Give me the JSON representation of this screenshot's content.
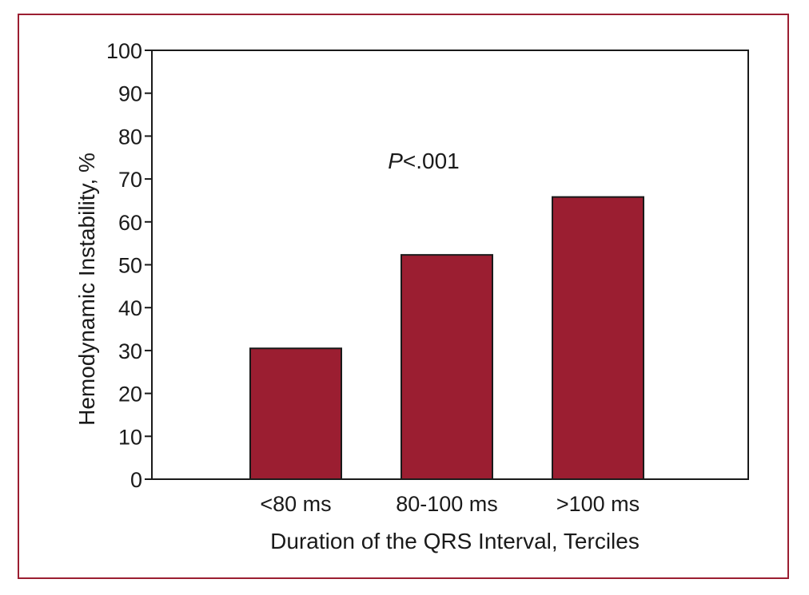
{
  "chart_data": {
    "type": "bar",
    "categories": [
      "<80 ms",
      "80-100 ms",
      ">100 ms"
    ],
    "values": [
      30.5,
      52.3,
      65.8
    ],
    "xlabel": "Duration of the QRS Interval, Terciles",
    "ylabel": "Hemodynamic Instability, %",
    "ylim": [
      0,
      100
    ],
    "yticks": [
      0,
      10,
      20,
      30,
      40,
      50,
      60,
      70,
      80,
      90,
      100
    ],
    "annotation": {
      "italic_part": "P",
      "rest": "<.001"
    },
    "grid": false,
    "legend": "none",
    "bar_color": "#9b1e31",
    "frame_color": "#9b1e31"
  }
}
